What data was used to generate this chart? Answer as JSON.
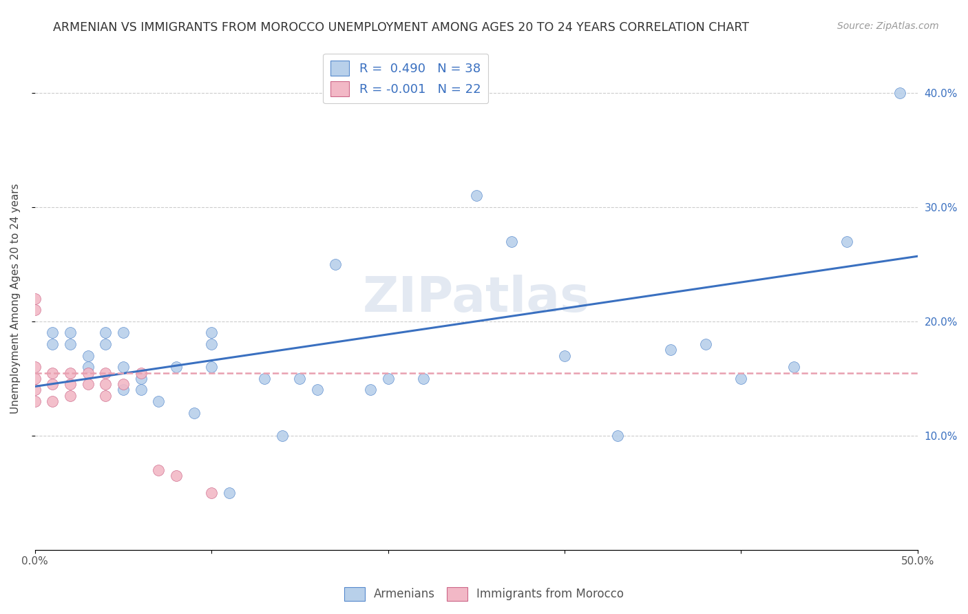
{
  "title": "ARMENIAN VS IMMIGRANTS FROM MOROCCO UNEMPLOYMENT AMONG AGES 20 TO 24 YEARS CORRELATION CHART",
  "source": "Source: ZipAtlas.com",
  "ylabel": "Unemployment Among Ages 20 to 24 years",
  "xlim": [
    0.0,
    0.5
  ],
  "ylim": [
    0.0,
    0.44
  ],
  "xticks": [
    0.0,
    0.1,
    0.2,
    0.3,
    0.4,
    0.5
  ],
  "yticks": [
    0.1,
    0.2,
    0.3,
    0.4
  ],
  "xtick_labels": [
    "0.0%",
    "",
    "",
    "",
    "",
    "50.0%"
  ],
  "ytick_labels_right": [
    "10.0%",
    "20.0%",
    "30.0%",
    "40.0%"
  ],
  "legend_r1": "R =  0.490   N = 38",
  "legend_r2": "R = -0.001   N = 22",
  "blue_fill": "#b8d0ea",
  "blue_edge": "#5588cc",
  "pink_fill": "#f2b8c6",
  "pink_edge": "#cc6688",
  "line_blue_color": "#3a70c0",
  "line_pink_color": "#e8a0b0",
  "armenians_x": [
    0.01,
    0.01,
    0.02,
    0.02,
    0.03,
    0.03,
    0.04,
    0.04,
    0.05,
    0.05,
    0.05,
    0.06,
    0.06,
    0.07,
    0.08,
    0.09,
    0.1,
    0.1,
    0.1,
    0.11,
    0.13,
    0.14,
    0.15,
    0.16,
    0.17,
    0.19,
    0.2,
    0.22,
    0.25,
    0.27,
    0.3,
    0.33,
    0.36,
    0.38,
    0.4,
    0.43,
    0.46,
    0.49
  ],
  "armenians_y": [
    0.19,
    0.18,
    0.19,
    0.18,
    0.17,
    0.16,
    0.19,
    0.18,
    0.19,
    0.14,
    0.16,
    0.15,
    0.14,
    0.13,
    0.16,
    0.12,
    0.19,
    0.18,
    0.16,
    0.05,
    0.15,
    0.1,
    0.15,
    0.14,
    0.25,
    0.14,
    0.15,
    0.15,
    0.31,
    0.27,
    0.17,
    0.1,
    0.175,
    0.18,
    0.15,
    0.16,
    0.27,
    0.4
  ],
  "morocco_x": [
    0.0,
    0.0,
    0.0,
    0.0,
    0.0,
    0.0,
    0.01,
    0.01,
    0.01,
    0.02,
    0.02,
    0.02,
    0.03,
    0.03,
    0.04,
    0.04,
    0.04,
    0.05,
    0.06,
    0.07,
    0.08,
    0.1
  ],
  "morocco_y": [
    0.22,
    0.21,
    0.16,
    0.15,
    0.14,
    0.13,
    0.155,
    0.145,
    0.13,
    0.155,
    0.145,
    0.135,
    0.155,
    0.145,
    0.155,
    0.145,
    0.135,
    0.145,
    0.155,
    0.07,
    0.065,
    0.05
  ],
  "watermark": "ZIPatlas",
  "title_fontsize": 12.5,
  "label_fontsize": 11,
  "tick_fontsize": 11,
  "legend_fontsize": 13,
  "marker_size": 130
}
